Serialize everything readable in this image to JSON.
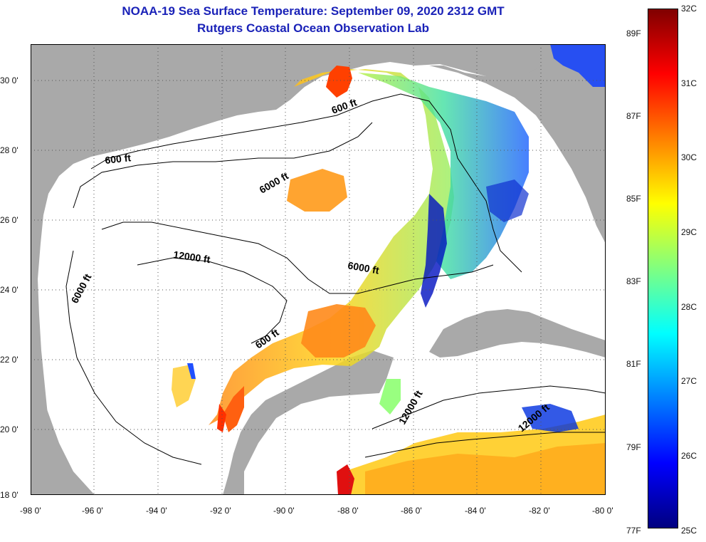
{
  "title": {
    "line1": "NOAA-19 Sea Surface Temperature:  September 09, 2020 2312 GMT",
    "line2": "Rutgers Coastal Ocean Observation Lab"
  },
  "axes": {
    "lat_labels": [
      "30 0'",
      "28 0'",
      "26 0'",
      "24 0'",
      "22 0'",
      "20 0'",
      "18 0'"
    ],
    "lon_labels": [
      "-98 0'",
      "-96 0'",
      "-94 0'",
      "-92 0'",
      "-90 0'",
      "-88 0'",
      "-86 0'",
      "-84 0'",
      "-82 0'",
      "-80 0'"
    ],
    "lat_range": [
      18,
      31
    ],
    "lon_range": [
      -98,
      -80
    ]
  },
  "contours": [
    {
      "label": "600 ft",
      "rotate": -20
    },
    {
      "label": "600 ft",
      "rotate": -6
    },
    {
      "label": "6000 ft",
      "rotate": -30
    },
    {
      "label": "12000 ft",
      "rotate": 8
    },
    {
      "label": "6000 ft",
      "rotate": -62
    },
    {
      "label": "6000 ft",
      "rotate": 10
    },
    {
      "label": "600 ft",
      "rotate": -35
    },
    {
      "label": "12000 ft",
      "rotate": -60
    },
    {
      "label": "12000 ft",
      "rotate": -40
    }
  ],
  "colorbar": {
    "min_c": 25,
    "max_c": 32,
    "celsius_labels": [
      "32C",
      "31C",
      "30C",
      "29C",
      "28C",
      "27C",
      "26C",
      "25C"
    ],
    "fahrenheit_labels": [
      "89F",
      "87F",
      "85F",
      "83F",
      "81F",
      "79F",
      "77F"
    ],
    "colors": [
      "#00007f",
      "#0000ff",
      "#0080ff",
      "#00ffff",
      "#80ff80",
      "#ffff00",
      "#ff8000",
      "#ff0000",
      "#7f0000"
    ]
  },
  "colors": {
    "land": "#a9a9a9",
    "title": "#1a22b8",
    "grid": "#555555"
  }
}
